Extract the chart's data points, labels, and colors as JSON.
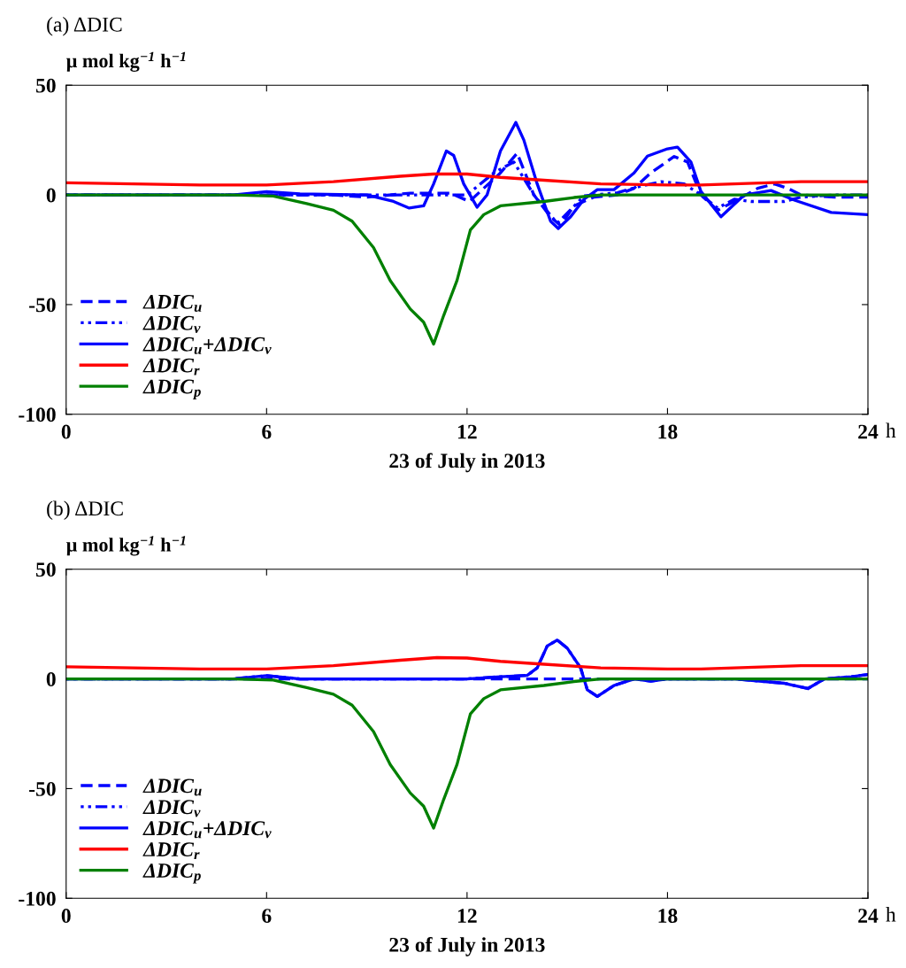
{
  "chart_data": [
    {
      "type": "line",
      "title": "(a) ΔDIC",
      "ylabel": "μ mol kg$^{−1}$ h$^{−1}$",
      "xlabel": "23 of July in 2013",
      "annotations": [
        "h"
      ],
      "xlim": [
        0,
        24
      ],
      "xticks": [
        0,
        6,
        12,
        18,
        24
      ],
      "ylim": [
        -100,
        50
      ],
      "yticks": [
        -100,
        -50,
        0,
        50
      ],
      "grid": false,
      "legend": "bottom left",
      "series": [
        {
          "name": "ΔDIC$_{u}$",
          "color": "#0000ff",
          "line_style": "dashed",
          "x": [
            0,
            8,
            9,
            10.3,
            11.5,
            12.07,
            13,
            13.5,
            14,
            14.5,
            14.8,
            15.2,
            15.8,
            16.5,
            17,
            17.5,
            18.2,
            18.6,
            19,
            19.5,
            20,
            20.7,
            21.2,
            21.6,
            22,
            23,
            24
          ],
          "values": [
            0,
            0,
            -1,
            0.8,
            0.8,
            -3,
            10,
            19,
            0,
            -10,
            -14,
            -5,
            -1,
            0,
            3,
            10,
            17.5,
            15,
            0,
            -7,
            -3,
            3,
            5,
            3,
            0,
            -1,
            -1
          ]
        },
        {
          "name": "ΔDIC$_{v}$",
          "color": "#0000ff",
          "line_style": "dotted",
          "x": [
            0,
            12,
            12.8,
            13.4,
            14,
            14.7,
            15.5,
            16.5,
            17.2,
            17.8,
            18.5,
            19,
            19.5,
            20,
            20.5,
            21.5,
            22,
            23,
            24
          ],
          "values": [
            0,
            0,
            10,
            15,
            0,
            -13,
            -0.5,
            1,
            4,
            6,
            5,
            0,
            -6,
            -2,
            -3,
            -3,
            -1,
            0,
            0
          ]
        },
        {
          "name": "ΔDIC$_{u}$+ΔDIC$_{v}$",
          "color": "#0000ff",
          "line_style": "solid",
          "x": [
            0,
            5,
            6,
            7,
            9,
            9.8,
            10.27,
            10.7,
            11,
            11.38,
            11.6,
            11.9,
            12.3,
            12.6,
            13,
            13.46,
            13.7,
            14.1,
            14.5,
            14.73,
            15.1,
            15.5,
            15.9,
            16.4,
            17,
            17.4,
            18,
            18.3,
            18.7,
            19,
            19.6,
            20.3,
            21.1,
            21.8,
            22.9,
            24
          ],
          "values": [
            0,
            0,
            1.5,
            0.5,
            0,
            -3,
            -6,
            -5,
            5,
            20,
            18,
            5,
            -5.6,
            0,
            20,
            33,
            25,
            5,
            -12,
            -15.3,
            -10,
            -2,
            2.4,
            2.4,
            10,
            17.7,
            21,
            21.8,
            15,
            1.6,
            -10,
            0,
            2,
            -2.4,
            -8,
            -9
          ]
        },
        {
          "name": "ΔDIC$_{r}$",
          "color": "#ff0000",
          "line_style": "solid",
          "x": [
            0,
            2,
            4,
            6,
            8,
            10,
            11,
            12,
            13,
            14,
            16,
            18,
            19,
            20,
            22,
            24
          ],
          "values": [
            5.5,
            5,
            4.5,
            4.5,
            6,
            8.5,
            9.5,
            9.5,
            8,
            7,
            5,
            4.5,
            4.5,
            5,
            6,
            6
          ]
        },
        {
          "name": "ΔDIC$_{p}$",
          "color": "#008000",
          "line_style": "solid",
          "x": [
            0,
            5,
            6.2,
            7.2,
            8.0,
            8.56,
            9.2,
            9.7,
            10.3,
            10.7,
            11.0,
            11.3,
            11.7,
            12.1,
            12.5,
            13.0,
            14.3,
            15.2,
            16,
            24
          ],
          "values": [
            0,
            0,
            -0.5,
            -4,
            -7,
            -12,
            -24,
            -39,
            -52,
            -58,
            -68,
            -55,
            -39,
            -16,
            -9,
            -5,
            -3,
            -1.2,
            0,
            0
          ]
        }
      ]
    },
    {
      "type": "line",
      "title": "(b) ΔDIC",
      "ylabel": "μ mol kg$^{−1}$ h$^{−1}$",
      "xlabel": "23 of July in 2013",
      "annotations": [
        "h"
      ],
      "xlim": [
        0,
        24
      ],
      "xticks": [
        0,
        6,
        12,
        18,
        24
      ],
      "ylim": [
        -100,
        50
      ],
      "yticks": [
        -100,
        -50,
        0,
        50
      ],
      "grid": false,
      "legend": "bottom left",
      "series": [
        {
          "name": "ΔDIC$_{u}$",
          "color": "#0000ff",
          "line_style": "dashed",
          "x": [
            0,
            24
          ],
          "values": [
            0,
            0
          ]
        },
        {
          "name": "ΔDIC$_{v}$",
          "color": "#0000ff",
          "line_style": "dotted",
          "x": [
            0,
            5,
            6,
            7,
            12,
            13,
            13.8,
            14.1,
            14.4,
            14.7,
            15.0,
            15.4,
            15.6,
            15.9,
            16.4,
            17,
            17.5,
            18,
            20,
            21.5,
            22.2,
            22.7,
            23.5,
            24
          ],
          "values": [
            0,
            0,
            1.5,
            0,
            0,
            1,
            1.6,
            5,
            15,
            17.7,
            14,
            5,
            -5,
            -8,
            -3,
            0,
            -1,
            0,
            0,
            -2,
            -4.4,
            0,
            1,
            2
          ]
        },
        {
          "name": "ΔDIC$_{u}$+ΔDIC$_{v}$",
          "color": "#0000ff",
          "line_style": "solid",
          "x": [
            0,
            5,
            6,
            7,
            12,
            13,
            13.8,
            14.1,
            14.4,
            14.7,
            15.0,
            15.4,
            15.6,
            15.9,
            16.4,
            17,
            17.5,
            18,
            20,
            21.5,
            22.2,
            22.7,
            23.5,
            24
          ],
          "values": [
            0,
            0,
            1.5,
            0,
            0,
            1,
            1.6,
            5,
            15,
            17.7,
            14,
            5,
            -5,
            -8,
            -3,
            0,
            -1,
            0,
            0,
            -2,
            -4.4,
            0,
            1,
            2
          ]
        },
        {
          "name": "ΔDIC$_{r}$",
          "color": "#ff0000",
          "line_style": "solid",
          "x": [
            0,
            2,
            4,
            6,
            8,
            10,
            11.1,
            12,
            13,
            14,
            16,
            18,
            19,
            20,
            22,
            24
          ],
          "values": [
            5.5,
            5,
            4.5,
            4.5,
            6,
            8.5,
            9.7,
            9.5,
            8,
            7,
            5,
            4.5,
            4.5,
            5,
            6,
            6
          ]
        },
        {
          "name": "ΔDIC$_{p}$",
          "color": "#008000",
          "line_style": "solid",
          "x": [
            0,
            5,
            6.2,
            7.2,
            8.0,
            8.56,
            9.2,
            9.7,
            10.3,
            10.7,
            11.0,
            11.3,
            11.7,
            12.1,
            12.5,
            13.0,
            14.3,
            15.2,
            16,
            24
          ],
          "values": [
            0,
            0,
            -0.5,
            -4,
            -7,
            -12,
            -24,
            -39,
            -52,
            -58,
            -68,
            -55,
            -39,
            -16,
            -9,
            -5,
            -3,
            -1.2,
            0,
            0
          ]
        }
      ]
    }
  ]
}
